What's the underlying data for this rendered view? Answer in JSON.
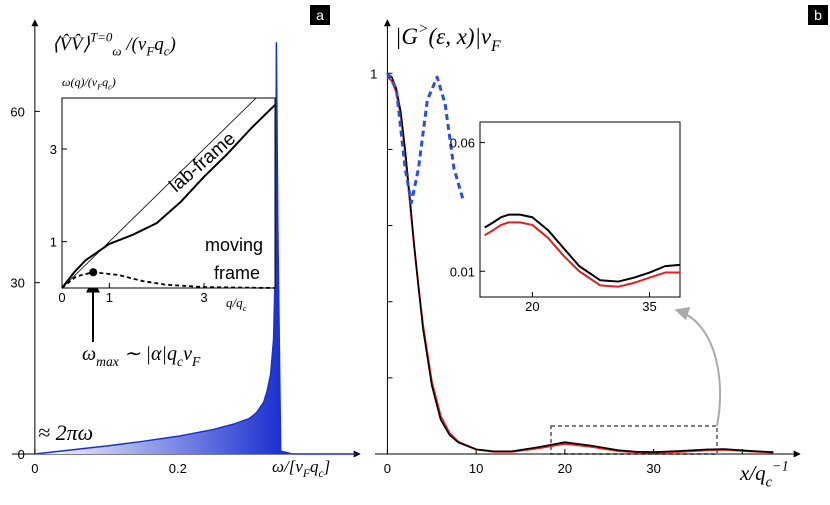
{
  "chart_data": [
    {
      "type": "line",
      "panel": "a",
      "ylabel": [
        {
          "text": "⟨V̂V̂⟩"
        },
        {
          "sup": "T=0"
        },
        {
          "sub": "ω"
        },
        {
          "text": " /(v"
        },
        {
          "sub": "F"
        },
        {
          "text": "q"
        },
        {
          "sub": "c"
        },
        {
          "text": ")"
        }
      ],
      "xlabel": [
        {
          "text": "ω/[v"
        },
        {
          "sub": "F"
        },
        {
          "text": "q"
        },
        {
          "sub": "c"
        },
        {
          "text": "]"
        }
      ],
      "xlim": [
        -0.032,
        0.455
      ],
      "ylim": [
        0,
        76
      ],
      "xticks": [
        0,
        {
          "value": 0.1,
          "label": null
        },
        0.2,
        {
          "value": 0.3,
          "label": null
        }
      ],
      "yticks": [
        0,
        30,
        60
      ],
      "series": [
        {
          "color": "#1a2fd0",
          "fill": true,
          "x": [
            0,
            0.05,
            0.1,
            0.15,
            0.2,
            0.25,
            0.28,
            0.3,
            0.31,
            0.32,
            0.325,
            0.33,
            0.334,
            0.337,
            0.338,
            0.34,
            0.344,
            0.36,
            0.45
          ],
          "values": [
            0,
            0.7,
            1.4,
            2.2,
            3.1,
            4.3,
            5.3,
            6.2,
            7.2,
            9,
            11,
            14,
            20,
            35,
            72,
            40,
            0.5,
            0,
            0
          ]
        }
      ],
      "annotations": [
        [
          {
            "text": "≈ 2πω"
          }
        ],
        [
          {
            "text": "ω"
          },
          {
            "sub": "max"
          },
          {
            "text": " ∼ |α|q"
          },
          {
            "sub": "c"
          },
          {
            "text": "v"
          },
          {
            "sub": "F"
          }
        ]
      ]
    },
    {
      "type": "line",
      "ylabel": [
        {
          "text": "ω(q)/(v"
        },
        {
          "sub": "F"
        },
        {
          "text": "q"
        },
        {
          "sub": "c"
        },
        {
          "text": ")"
        }
      ],
      "xlabel": [
        {
          "text": "q/q"
        },
        {
          "sub": "c"
        }
      ],
      "xlim": [
        0,
        4.5
      ],
      "ylim": [
        0,
        4.1
      ],
      "xticks": [
        0,
        1,
        3
      ],
      "yticks": [
        1,
        3
      ],
      "series": [
        {
          "color": "#000000",
          "width": 0.8,
          "x": [
            0,
            4.1
          ],
          "values": [
            0,
            4.1
          ]
        },
        {
          "color": "#000000",
          "width": 2,
          "x": [
            0,
            0.25,
            0.5,
            1,
            1.5,
            2,
            2.5,
            3,
            3.5,
            4,
            4.5
          ],
          "values": [
            0,
            0.33,
            0.6,
            0.95,
            1.15,
            1.4,
            1.85,
            2.4,
            2.9,
            3.45,
            3.95
          ]
        },
        {
          "color": "#000000",
          "width": 1.8,
          "dashed": true,
          "x": [
            0,
            0.3,
            0.66,
            1.2,
            1.7,
            2.2,
            3,
            4.5
          ],
          "values": [
            0,
            0.25,
            0.34,
            0.28,
            0.15,
            0.07,
            0.02,
            0
          ]
        }
      ],
      "annotations": [
        [
          {
            "text": "lab-frame"
          }
        ],
        [
          {
            "text": "moving"
          }
        ],
        [
          {
            "text": "frame"
          }
        ]
      ]
    },
    {
      "type": "line",
      "panel": "b",
      "ylabel": [
        {
          "text": "|G"
        },
        {
          "sup": ">"
        },
        {
          "text": "(ε, x)|v"
        },
        {
          "sub": "F"
        }
      ],
      "xlabel": [
        {
          "text": "x/q"
        },
        {
          "sub": "c"
        },
        {
          "sup": "−1"
        }
      ],
      "xlim": [
        -1.4,
        46.5
      ],
      "ylim": [
        0,
        1.14
      ],
      "xticks": [
        0,
        10,
        20,
        30,
        {
          "value": 40,
          "label": null
        }
      ],
      "yticks": [
        {
          "value": 0.2,
          "label": null
        },
        {
          "value": 0.4,
          "label": null
        },
        {
          "value": 0.6,
          "label": null
        },
        {
          "value": 0.8,
          "label": null
        },
        1
      ],
      "series": [
        {
          "color": "#e02020",
          "width": 2,
          "x": [
            0,
            0.5,
            1,
            1.5,
            2,
            2.5,
            3,
            3.5,
            4,
            5,
            6,
            7,
            8,
            10,
            12,
            14,
            17,
            20,
            23,
            26,
            28,
            30,
            33,
            36,
            38,
            41,
            43.5
          ],
          "values": [
            0.99,
            0.98,
            0.95,
            0.89,
            0.79,
            0.67,
            0.55,
            0.44,
            0.34,
            0.19,
            0.1,
            0.055,
            0.032,
            0.012,
            0.006,
            0.006,
            0.015,
            0.027,
            0.019,
            0.008,
            0.005,
            0.004,
            0.006,
            0.01,
            0.011,
            0.007,
            0.004
          ]
        },
        {
          "color": "#000000",
          "width": 1.6,
          "x": [
            0,
            0.5,
            1,
            1.5,
            2,
            2.5,
            3,
            3.5,
            4,
            5,
            6,
            7,
            8,
            10,
            12,
            14,
            17,
            20,
            23,
            26,
            28,
            30,
            33,
            36,
            38,
            41,
            43.5
          ],
          "values": [
            1,
            0.99,
            0.96,
            0.9,
            0.8,
            0.68,
            0.55,
            0.44,
            0.33,
            0.18,
            0.09,
            0.05,
            0.03,
            0.012,
            0.007,
            0.007,
            0.018,
            0.031,
            0.022,
            0.01,
            0.006,
            0.005,
            0.008,
            0.012,
            0.013,
            0.008,
            0.005
          ]
        },
        {
          "color": "#2a4fe0",
          "width": 3,
          "dashed": true,
          "x": [
            0,
            1,
            2,
            2.7,
            3.5,
            4.5,
            5.6,
            6.5,
            7.5,
            8.5
          ],
          "values": [
            1,
            0.96,
            0.75,
            0.66,
            0.75,
            0.93,
            0.99,
            0.92,
            0.75,
            0.67
          ]
        }
      ]
    },
    {
      "type": "line",
      "xlim": [
        13.3,
        38.9
      ],
      "ylim": [
        0,
        0.068
      ],
      "xticks": [
        20,
        35
      ],
      "yticks": [
        0.01,
        0.06
      ],
      "series": [
        {
          "color": "#e02020",
          "width": 2,
          "x": [
            13.9,
            15,
            16,
            17,
            18.4,
            20,
            22,
            24,
            26,
            28.7,
            31,
            33,
            35,
            37,
            38.9
          ],
          "values": [
            0.024,
            0.026,
            0.028,
            0.029,
            0.029,
            0.028,
            0.023,
            0.016,
            0.01,
            0.0045,
            0.004,
            0.0055,
            0.0075,
            0.0095,
            0.0095
          ]
        },
        {
          "color": "#000000",
          "width": 2,
          "x": [
            13.9,
            15,
            16,
            17,
            18.4,
            20,
            22,
            24,
            26,
            28.7,
            31,
            33,
            35,
            37,
            38.9
          ],
          "values": [
            0.027,
            0.029,
            0.031,
            0.032,
            0.032,
            0.031,
            0.026,
            0.019,
            0.012,
            0.0065,
            0.006,
            0.0075,
            0.0095,
            0.012,
            0.0125
          ]
        }
      ]
    }
  ]
}
